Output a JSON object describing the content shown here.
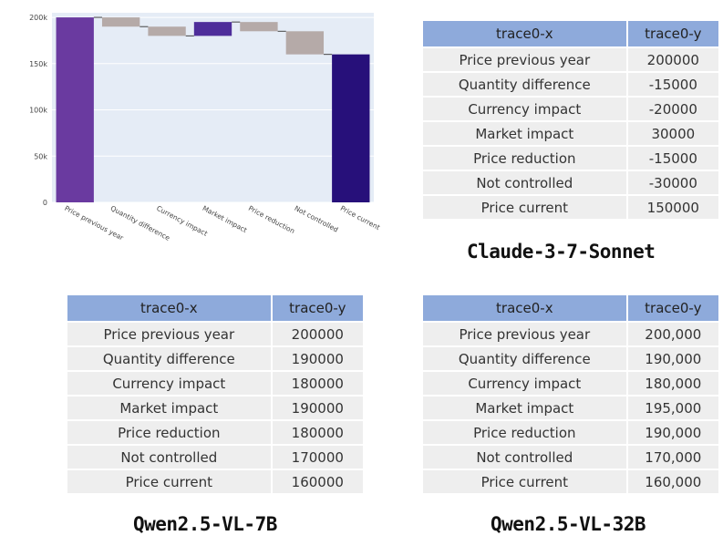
{
  "chart_data": {
    "type": "waterfall",
    "categories": [
      "Price previous year",
      "Quantity difference",
      "Currency impact",
      "Market impact",
      "Price reduction",
      "Not controlled",
      "Price current"
    ],
    "measures": [
      "absolute",
      "relative",
      "relative",
      "relative",
      "relative",
      "relative",
      "total"
    ],
    "values": [
      200000,
      -10000,
      -10000,
      15000,
      -10000,
      -25000,
      160000
    ],
    "ylim": [
      0,
      205000
    ],
    "yticks": [
      0,
      50000,
      100000,
      150000,
      200000
    ],
    "ytick_labels": [
      "0",
      "50k",
      "100k",
      "150k",
      "200k"
    ],
    "title": "",
    "xlabel": "",
    "ylabel": "",
    "colors": {
      "absolute": "#6a3aa0",
      "increase": "#4e2d9a",
      "decrease": "#b5aaa8",
      "total": "#27107a",
      "plot_bg": "#e5ecf6",
      "grid": "#ffffff",
      "connector": "#444444"
    }
  },
  "tables": [
    {
      "id": "claude",
      "header": [
        "trace0-x",
        "trace0-y"
      ],
      "rows": [
        [
          "Price previous year",
          "200000"
        ],
        [
          "Quantity difference",
          "-15000"
        ],
        [
          "Currency impact",
          "-20000"
        ],
        [
          "Market impact",
          "30000"
        ],
        [
          "Price reduction",
          "-15000"
        ],
        [
          "Not controlled",
          "-30000"
        ],
        [
          "Price current",
          "150000"
        ]
      ],
      "caption": "Claude-3-7-Sonnet"
    },
    {
      "id": "qwen7b",
      "header": [
        "trace0-x",
        "trace0-y"
      ],
      "rows": [
        [
          "Price previous year",
          "200000"
        ],
        [
          "Quantity difference",
          "190000"
        ],
        [
          "Currency impact",
          "180000"
        ],
        [
          "Market impact",
          "190000"
        ],
        [
          "Price reduction",
          "180000"
        ],
        [
          "Not controlled",
          "170000"
        ],
        [
          "Price current",
          "160000"
        ]
      ],
      "caption": "Qwen2.5-VL-7B"
    },
    {
      "id": "qwen32b",
      "header": [
        "trace0-x",
        "trace0-y"
      ],
      "rows": [
        [
          "Price previous year",
          "200,000"
        ],
        [
          "Quantity difference",
          "190,000"
        ],
        [
          "Currency impact",
          "180,000"
        ],
        [
          "Market impact",
          "195,000"
        ],
        [
          "Price reduction",
          "190,000"
        ],
        [
          "Not controlled",
          "170,000"
        ],
        [
          "Price current",
          "160,000"
        ]
      ],
      "caption": "Qwen2.5-VL-32B"
    }
  ]
}
